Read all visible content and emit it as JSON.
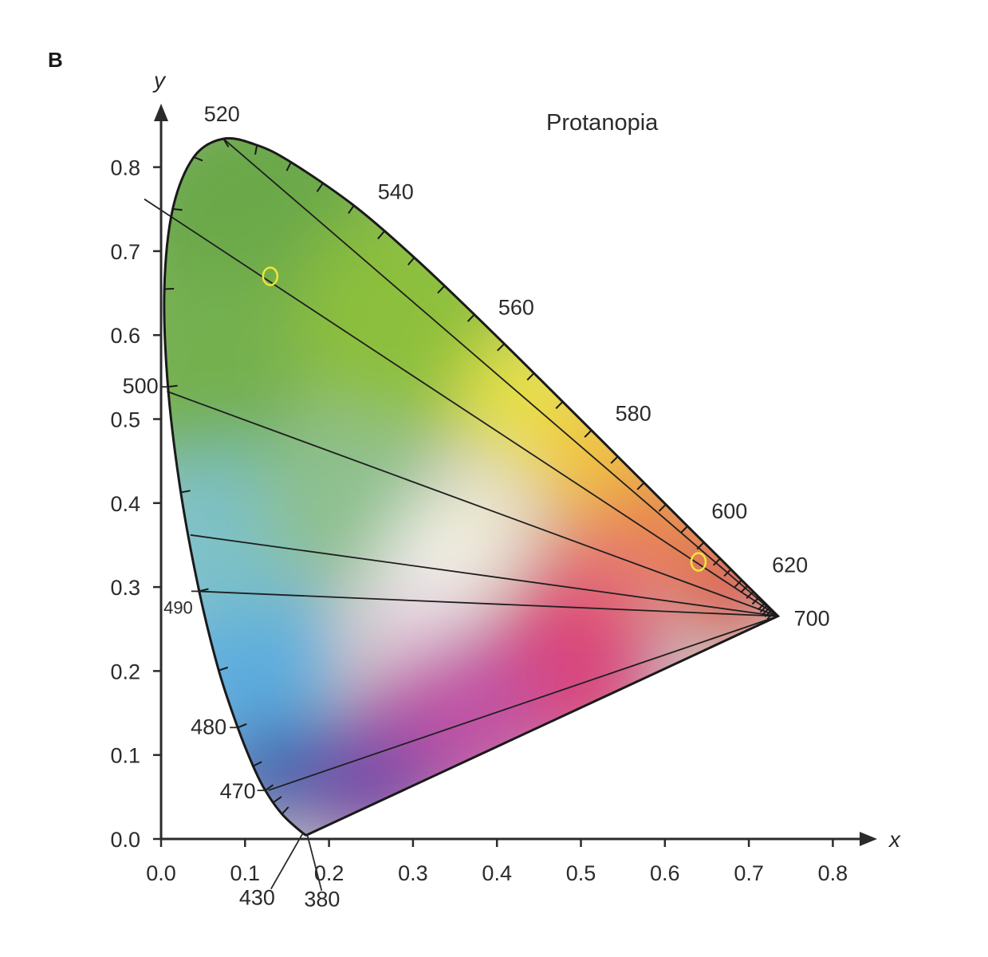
{
  "panel_label": "B",
  "chart_data": {
    "type": "chromaticity-diagram",
    "title": "",
    "annotation": "Protanopia",
    "xlabel": "x",
    "ylabel": "y",
    "xlim": [
      0,
      0.85
    ],
    "ylim": [
      0,
      0.85
    ],
    "x_ticks": [
      "0.0",
      "0.1",
      "0.2",
      "0.3",
      "0.4",
      "0.5",
      "0.6",
      "0.7",
      "0.8"
    ],
    "y_ticks": [
      "0.0",
      "0.1",
      "0.2",
      "0.3",
      "0.4",
      "0.5",
      "0.6",
      "0.7",
      "0.8"
    ],
    "spectral_locus": [
      {
        "nm": 380,
        "x": 0.1741,
        "y": 0.005
      },
      {
        "nm": 430,
        "x": 0.1689,
        "y": 0.0069
      },
      {
        "nm": 460,
        "x": 0.144,
        "y": 0.0297
      },
      {
        "nm": 470,
        "x": 0.1241,
        "y": 0.0578
      },
      {
        "nm": 475,
        "x": 0.1096,
        "y": 0.0868
      },
      {
        "nm": 480,
        "x": 0.0913,
        "y": 0.1327
      },
      {
        "nm": 485,
        "x": 0.0687,
        "y": 0.2007
      },
      {
        "nm": 490,
        "x": 0.0454,
        "y": 0.295
      },
      {
        "nm": 495,
        "x": 0.0235,
        "y": 0.4127
      },
      {
        "nm": 500,
        "x": 0.0082,
        "y": 0.5384
      },
      {
        "nm": 505,
        "x": 0.0039,
        "y": 0.6548
      },
      {
        "nm": 510,
        "x": 0.0139,
        "y": 0.7502
      },
      {
        "nm": 515,
        "x": 0.0389,
        "y": 0.812
      },
      {
        "nm": 520,
        "x": 0.0743,
        "y": 0.8338
      },
      {
        "nm": 525,
        "x": 0.1142,
        "y": 0.8262
      },
      {
        "nm": 530,
        "x": 0.1547,
        "y": 0.8059
      },
      {
        "nm": 540,
        "x": 0.2296,
        "y": 0.7543
      },
      {
        "nm": 550,
        "x": 0.3016,
        "y": 0.6923
      },
      {
        "nm": 560,
        "x": 0.3731,
        "y": 0.6245
      },
      {
        "nm": 570,
        "x": 0.4441,
        "y": 0.5547
      },
      {
        "nm": 580,
        "x": 0.5125,
        "y": 0.4866
      },
      {
        "nm": 590,
        "x": 0.5752,
        "y": 0.4242
      },
      {
        "nm": 600,
        "x": 0.627,
        "y": 0.3725
      },
      {
        "nm": 610,
        "x": 0.6658,
        "y": 0.334
      },
      {
        "nm": 620,
        "x": 0.6915,
        "y": 0.3083
      },
      {
        "nm": 640,
        "x": 0.719,
        "y": 0.2809
      },
      {
        "nm": 660,
        "x": 0.73,
        "y": 0.27
      },
      {
        "nm": 700,
        "x": 0.7347,
        "y": 0.2653
      }
    ],
    "wavelength_labels": [
      {
        "text": "520",
        "nm": 520
      },
      {
        "text": "540",
        "nm": 540
      },
      {
        "text": "560",
        "nm": 560
      },
      {
        "text": "580",
        "nm": 580
      },
      {
        "text": "600",
        "nm": 600
      },
      {
        "text": "620",
        "nm": 620
      },
      {
        "text": "700",
        "nm": 700
      },
      {
        "text": "500",
        "nm": 500
      },
      {
        "text": "490",
        "nm": 490
      },
      {
        "text": "480",
        "nm": 480
      },
      {
        "text": "470",
        "nm": 470
      },
      {
        "text": "430",
        "nm": 430
      },
      {
        "text": "380",
        "nm": 380
      }
    ],
    "confusion_point": {
      "x": 0.7347,
      "y": 0.2653
    },
    "confusion_lines": [
      {
        "x": 0.0743,
        "y": 0.8338
      },
      {
        "x": -0.02,
        "y": 0.762
      },
      {
        "x": 0.007,
        "y": 0.533
      },
      {
        "x": 0.035,
        "y": 0.362
      },
      {
        "x": 0.042,
        "y": 0.295
      },
      {
        "x": 0.128,
        "y": 0.058
      }
    ],
    "markers": [
      {
        "x": 0.13,
        "y": 0.67
      },
      {
        "x": 0.64,
        "y": 0.33
      }
    ],
    "marker_color": "#f2e53a",
    "line_color": "#1f1f1f"
  }
}
